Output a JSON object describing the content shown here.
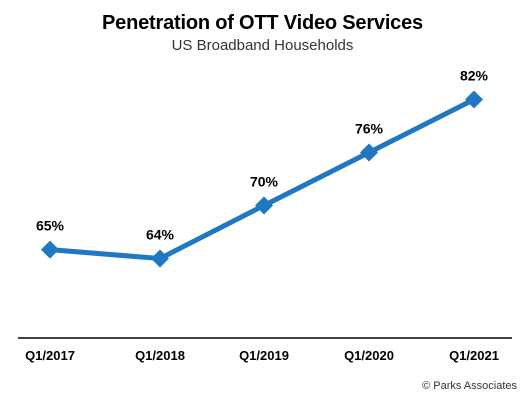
{
  "chart_data": {
    "type": "line",
    "title": "Penetration of OTT Video Services",
    "subtitle": "US Broadband Households",
    "xlabel": "",
    "ylabel": "",
    "categories": [
      "Q1/2017",
      "Q1/2018",
      "Q1/2019",
      "Q1/2020",
      "Q1/2021"
    ],
    "series": [
      {
        "values": [
          65,
          64,
          70,
          76,
          82
        ],
        "labels": [
          "65%",
          "64%",
          "70%",
          "76%",
          "82%"
        ]
      }
    ],
    "ylim": [
      55,
      85
    ],
    "grid": false,
    "legend": "none",
    "colors": {
      "line": "#1f78c1",
      "axis": "#000000"
    }
  },
  "credit": "© Parks Associates"
}
